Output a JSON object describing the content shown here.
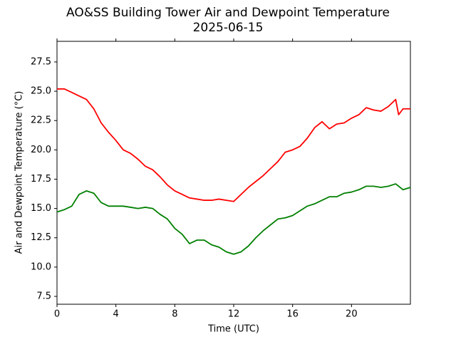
{
  "chart_data": {
    "type": "line",
    "title": "AO&SS Building Tower Air and Dewpoint Temperature",
    "subtitle": "2025-06-15",
    "x_label": "Time (UTC)",
    "y_label": "Air and Dewpoint Temperature (°C)",
    "x": [
      0,
      0.5,
      1,
      1.5,
      2,
      2.5,
      3,
      3.5,
      4,
      4.5,
      5,
      5.5,
      6,
      6.5,
      7,
      7.5,
      8,
      8.5,
      9,
      9.5,
      10,
      10.5,
      11,
      11.5,
      12,
      12.5,
      13,
      13.5,
      14,
      14.5,
      15,
      15.5,
      16,
      16.5,
      17,
      17.5,
      18,
      18.5,
      19,
      19.5,
      20,
      20.5,
      21,
      21.5,
      22,
      22.5,
      23,
      23.2,
      23.5,
      24
    ],
    "series": [
      {
        "color": "#ff0000",
        "values": [
          25.2,
          25.2,
          24.9,
          24.6,
          24.3,
          23.5,
          22.3,
          21.5,
          20.8,
          20.0,
          19.7,
          19.2,
          18.6,
          18.3,
          17.7,
          17.0,
          16.5,
          16.2,
          15.9,
          15.8,
          15.7,
          15.7,
          15.8,
          15.7,
          15.6,
          16.2,
          16.8,
          17.3,
          17.8,
          18.4,
          19.0,
          19.8,
          20.0,
          20.3,
          21.0,
          21.9,
          22.4,
          21.8,
          22.2,
          22.3,
          22.7,
          23.0,
          23.6,
          23.4,
          23.3,
          23.7,
          24.3,
          23.0,
          23.5,
          23.5
        ]
      },
      {
        "color": "#008000",
        "values": [
          14.7,
          14.9,
          15.2,
          16.2,
          16.5,
          16.3,
          15.5,
          15.2,
          15.2,
          15.2,
          15.1,
          15.0,
          15.1,
          15.0,
          14.5,
          14.1,
          13.3,
          12.8,
          12.0,
          12.3,
          12.3,
          11.9,
          11.7,
          11.3,
          11.1,
          11.3,
          11.8,
          12.5,
          13.1,
          13.6,
          14.1,
          14.2,
          14.4,
          14.8,
          15.2,
          15.4,
          15.7,
          16.0,
          16.0,
          16.3,
          16.4,
          16.6,
          16.9,
          16.9,
          16.8,
          16.9,
          17.1,
          16.9,
          16.6,
          16.8
        ]
      }
    ],
    "xlim": [
      0,
      24
    ],
    "xticks": [
      0,
      4,
      8,
      12,
      16,
      20
    ],
    "ylim": [
      6.83,
      29.26
    ],
    "yticks": [
      7.5,
      {
        "value": 10,
        "label": "10.0"
      },
      12.5,
      {
        "value": 15,
        "label": "15.0"
      },
      17.5,
      {
        "value": 20,
        "label": "20.0"
      },
      22.5,
      {
        "value": 25,
        "label": "25.0"
      },
      27.5
    ],
    "grid": false
  }
}
